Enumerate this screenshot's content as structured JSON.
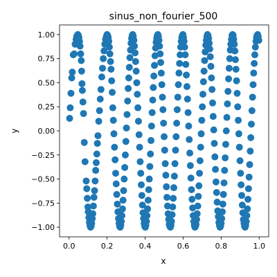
{
  "chart_data": {
    "type": "scatter",
    "title": "sinus_non_fourier_500",
    "xlabel": "x",
    "ylabel": "y",
    "xlim": [
      -0.05,
      1.05
    ],
    "ylim": [
      -1.1,
      1.1
    ],
    "xticks": [
      0.0,
      0.2,
      0.4,
      0.6,
      0.8,
      1.0
    ],
    "xtick_labels": [
      "0.0",
      "0.2",
      "0.4",
      "0.6",
      "0.8",
      "1.0"
    ],
    "yticks": [
      -1.0,
      -0.75,
      -0.5,
      -0.25,
      0.0,
      0.25,
      0.5,
      0.75,
      1.0
    ],
    "ytick_labels": [
      "−1.00",
      "−0.75",
      "−0.50",
      "−0.25",
      "0.00",
      "0.25",
      "0.50",
      "0.75",
      "1.00"
    ],
    "grid": false,
    "marker_color": "#1f77b4",
    "approximate_function": "y = sin(2*pi*7*x)",
    "points": [
      [
        0.003,
        0.13
      ],
      [
        0.006,
        0.24
      ],
      [
        0.01,
        0.39
      ],
      [
        0.014,
        0.55
      ],
      [
        0.017,
        0.61
      ],
      [
        0.022,
        0.79
      ],
      [
        0.027,
        0.8
      ],
      [
        0.032,
        0.9
      ],
      [
        0.037,
        0.95
      ],
      [
        0.04,
        0.98
      ],
      [
        0.043,
        0.99
      ],
      [
        0.046,
        1.0
      ],
      [
        0.049,
        0.99
      ],
      [
        0.052,
        0.97
      ],
      [
        0.055,
        0.93
      ],
      [
        0.058,
        0.88
      ],
      [
        0.061,
        0.8
      ],
      [
        0.064,
        0.73
      ],
      [
        0.066,
        0.62
      ],
      [
        0.068,
        0.49
      ],
      [
        0.07,
        0.42
      ],
      [
        0.073,
        0.3
      ],
      [
        0.076,
        0.18
      ],
      [
        0.08,
        -0.12
      ],
      [
        0.084,
        -0.32
      ],
      [
        0.09,
        -0.52
      ],
      [
        0.093,
        -0.6
      ],
      [
        0.096,
        -0.7
      ],
      [
        0.099,
        -0.79
      ],
      [
        0.101,
        -0.84
      ],
      [
        0.104,
        -0.9
      ],
      [
        0.107,
        -0.95
      ],
      [
        0.11,
        -0.98
      ],
      [
        0.113,
        -1.0
      ],
      [
        0.116,
        -0.99
      ],
      [
        0.119,
        -0.96
      ],
      [
        0.122,
        -0.91
      ],
      [
        0.125,
        -0.86
      ],
      [
        0.128,
        -0.78
      ],
      [
        0.131,
        -0.69
      ],
      [
        0.134,
        -0.62
      ],
      [
        0.137,
        -0.52
      ],
      [
        0.14,
        -0.41
      ],
      [
        0.143,
        -0.33
      ],
      [
        0.146,
        -0.24
      ],
      [
        0.149,
        -0.13
      ],
      [
        0.152,
        -0.05
      ],
      [
        0.156,
        0.1
      ],
      [
        0.16,
        0.21
      ],
      [
        0.164,
        0.33
      ],
      [
        0.168,
        0.43
      ],
      [
        0.172,
        0.56
      ],
      [
        0.176,
        0.65
      ],
      [
        0.18,
        0.75
      ],
      [
        0.184,
        0.83
      ],
      [
        0.188,
        0.9
      ],
      [
        0.192,
        0.95
      ],
      [
        0.196,
        0.98
      ],
      [
        0.2,
        1.0
      ],
      [
        0.203,
        0.99
      ],
      [
        0.206,
        0.97
      ],
      [
        0.209,
        0.93
      ],
      [
        0.212,
        0.87
      ],
      [
        0.215,
        0.8
      ],
      [
        0.218,
        0.72
      ],
      [
        0.221,
        0.64
      ],
      [
        0.224,
        0.52
      ],
      [
        0.227,
        0.4
      ],
      [
        0.23,
        0.24
      ],
      [
        0.233,
        0.11
      ],
      [
        0.236,
        -0.03
      ],
      [
        0.239,
        -0.17
      ],
      [
        0.242,
        -0.3
      ],
      [
        0.245,
        -0.44
      ],
      [
        0.248,
        -0.55
      ],
      [
        0.251,
        -0.66
      ],
      [
        0.254,
        -0.76
      ],
      [
        0.257,
        -0.84
      ],
      [
        0.26,
        -0.91
      ],
      [
        0.263,
        -0.96
      ],
      [
        0.266,
        -0.99
      ],
      [
        0.269,
        -1.0
      ],
      [
        0.272,
        -0.98
      ],
      [
        0.275,
        -0.94
      ],
      [
        0.278,
        -0.88
      ],
      [
        0.281,
        -0.81
      ],
      [
        0.284,
        -0.72
      ],
      [
        0.287,
        -0.62
      ],
      [
        0.29,
        -0.5
      ],
      [
        0.293,
        -0.38
      ],
      [
        0.296,
        -0.25
      ],
      [
        0.299,
        -0.11
      ],
      [
        0.302,
        0.03
      ],
      [
        0.305,
        0.17
      ],
      [
        0.308,
        0.31
      ],
      [
        0.311,
        0.44
      ],
      [
        0.314,
        0.55
      ],
      [
        0.317,
        0.66
      ],
      [
        0.32,
        0.76
      ],
      [
        0.323,
        0.84
      ],
      [
        0.326,
        0.91
      ],
      [
        0.329,
        0.96
      ],
      [
        0.332,
        0.99
      ],
      [
        0.335,
        1.0
      ],
      [
        0.338,
        0.98
      ],
      [
        0.341,
        0.94
      ],
      [
        0.344,
        0.88
      ],
      [
        0.347,
        0.81
      ],
      [
        0.35,
        0.72
      ],
      [
        0.353,
        0.62
      ],
      [
        0.356,
        0.5
      ],
      [
        0.359,
        0.38
      ],
      [
        0.362,
        0.24
      ],
      [
        0.365,
        0.1
      ],
      [
        0.368,
        -0.04
      ],
      [
        0.371,
        -0.17
      ],
      [
        0.374,
        -0.32
      ],
      [
        0.377,
        -0.44
      ],
      [
        0.38,
        -0.56
      ],
      [
        0.383,
        -0.67
      ],
      [
        0.386,
        -0.77
      ],
      [
        0.389,
        -0.85
      ],
      [
        0.392,
        -0.91
      ],
      [
        0.395,
        -0.96
      ],
      [
        0.398,
        -0.99
      ],
      [
        0.401,
        -1.0
      ],
      [
        0.404,
        -0.98
      ],
      [
        0.407,
        -0.94
      ],
      [
        0.41,
        -0.88
      ],
      [
        0.413,
        -0.81
      ],
      [
        0.416,
        -0.72
      ],
      [
        0.419,
        -0.61
      ],
      [
        0.422,
        -0.5
      ],
      [
        0.425,
        -0.37
      ],
      [
        0.428,
        -0.24
      ],
      [
        0.431,
        -0.1
      ],
      [
        0.434,
        0.05
      ],
      [
        0.437,
        0.19
      ],
      [
        0.44,
        0.32
      ],
      [
        0.443,
        0.45
      ],
      [
        0.446,
        0.57
      ],
      [
        0.449,
        0.68
      ],
      [
        0.452,
        0.78
      ],
      [
        0.455,
        0.86
      ],
      [
        0.458,
        0.92
      ],
      [
        0.461,
        0.96
      ],
      [
        0.464,
        0.99
      ],
      [
        0.467,
        1.0
      ],
      [
        0.47,
        0.98
      ],
      [
        0.473,
        0.94
      ],
      [
        0.476,
        0.88
      ],
      [
        0.479,
        0.8
      ],
      [
        0.482,
        0.71
      ],
      [
        0.485,
        0.6
      ],
      [
        0.488,
        0.48
      ],
      [
        0.491,
        0.35
      ],
      [
        0.494,
        0.22
      ],
      [
        0.497,
        0.08
      ],
      [
        0.5,
        -0.06
      ],
      [
        0.503,
        -0.2
      ],
      [
        0.506,
        -0.34
      ],
      [
        0.509,
        -0.46
      ],
      [
        0.512,
        -0.58
      ],
      [
        0.515,
        -0.69
      ],
      [
        0.518,
        -0.78
      ],
      [
        0.521,
        -0.86
      ],
      [
        0.524,
        -0.92
      ],
      [
        0.527,
        -0.97
      ],
      [
        0.53,
        -0.99
      ],
      [
        0.533,
        -1.0
      ],
      [
        0.536,
        -0.98
      ],
      [
        0.539,
        -0.94
      ],
      [
        0.542,
        -0.87
      ],
      [
        0.545,
        -0.79
      ],
      [
        0.548,
        -0.7
      ],
      [
        0.551,
        -0.59
      ],
      [
        0.554,
        -0.47
      ],
      [
        0.557,
        -0.34
      ],
      [
        0.56,
        -0.2
      ],
      [
        0.563,
        -0.06
      ],
      [
        0.566,
        0.08
      ],
      [
        0.569,
        0.22
      ],
      [
        0.572,
        0.35
      ],
      [
        0.575,
        0.48
      ],
      [
        0.578,
        0.6
      ],
      [
        0.581,
        0.7
      ],
      [
        0.584,
        0.79
      ],
      [
        0.587,
        0.87
      ],
      [
        0.59,
        0.93
      ],
      [
        0.593,
        0.97
      ],
      [
        0.596,
        0.99
      ],
      [
        0.599,
        1.0
      ],
      [
        0.602,
        0.97
      ],
      [
        0.605,
        0.93
      ],
      [
        0.608,
        0.87
      ],
      [
        0.611,
        0.79
      ],
      [
        0.614,
        0.69
      ],
      [
        0.617,
        0.58
      ],
      [
        0.62,
        0.46
      ],
      [
        0.623,
        0.33
      ],
      [
        0.626,
        0.19
      ],
      [
        0.629,
        0.05
      ],
      [
        0.632,
        -0.09
      ],
      [
        0.635,
        -0.23
      ],
      [
        0.638,
        -0.36
      ],
      [
        0.641,
        -0.49
      ],
      [
        0.644,
        -0.61
      ],
      [
        0.647,
        -0.71
      ],
      [
        0.65,
        -0.8
      ],
      [
        0.653,
        -0.88
      ],
      [
        0.656,
        -0.94
      ],
      [
        0.659,
        -0.98
      ],
      [
        0.662,
        -1.0
      ],
      [
        0.665,
        -0.99
      ],
      [
        0.668,
        -0.97
      ],
      [
        0.671,
        -0.92
      ],
      [
        0.674,
        -0.86
      ],
      [
        0.677,
        -0.78
      ],
      [
        0.68,
        -0.68
      ],
      [
        0.683,
        -0.57
      ],
      [
        0.686,
        -0.44
      ],
      [
        0.689,
        -0.31
      ],
      [
        0.692,
        -0.17
      ],
      [
        0.695,
        -0.03
      ],
      [
        0.698,
        0.11
      ],
      [
        0.701,
        0.25
      ],
      [
        0.704,
        0.38
      ],
      [
        0.707,
        0.51
      ],
      [
        0.71,
        0.62
      ],
      [
        0.713,
        0.73
      ],
      [
        0.716,
        0.82
      ],
      [
        0.719,
        0.89
      ],
      [
        0.722,
        0.94
      ],
      [
        0.725,
        0.98
      ],
      [
        0.728,
        1.0
      ],
      [
        0.731,
        0.99
      ],
      [
        0.734,
        0.96
      ],
      [
        0.737,
        0.91
      ],
      [
        0.74,
        0.85
      ],
      [
        0.743,
        0.77
      ],
      [
        0.746,
        0.67
      ],
      [
        0.749,
        0.55
      ],
      [
        0.752,
        0.43
      ],
      [
        0.755,
        0.29
      ],
      [
        0.758,
        0.15
      ],
      [
        0.761,
        0.01
      ],
      [
        0.764,
        -0.13
      ],
      [
        0.767,
        -0.27
      ],
      [
        0.77,
        -0.4
      ],
      [
        0.773,
        -0.53
      ],
      [
        0.776,
        -0.64
      ],
      [
        0.779,
        -0.74
      ],
      [
        0.782,
        -0.83
      ],
      [
        0.785,
        -0.89
      ],
      [
        0.788,
        -0.95
      ],
      [
        0.791,
        -0.98
      ],
      [
        0.794,
        -1.0
      ],
      [
        0.797,
        -0.99
      ],
      [
        0.8,
        -0.96
      ],
      [
        0.803,
        -0.91
      ],
      [
        0.806,
        -0.84
      ],
      [
        0.809,
        -0.76
      ],
      [
        0.812,
        -0.66
      ],
      [
        0.815,
        -0.54
      ],
      [
        0.818,
        -0.41
      ],
      [
        0.821,
        -0.28
      ],
      [
        0.824,
        -0.14
      ],
      [
        0.827,
        0.0
      ],
      [
        0.83,
        0.14
      ],
      [
        0.833,
        0.28
      ],
      [
        0.836,
        0.41
      ],
      [
        0.839,
        0.54
      ],
      [
        0.842,
        0.65
      ],
      [
        0.845,
        0.75
      ],
      [
        0.848,
        0.84
      ],
      [
        0.851,
        0.9
      ],
      [
        0.854,
        0.95
      ],
      [
        0.857,
        0.99
      ],
      [
        0.86,
        1.0
      ],
      [
        0.863,
        0.99
      ],
      [
        0.866,
        0.95
      ],
      [
        0.869,
        0.9
      ],
      [
        0.872,
        0.83
      ],
      [
        0.875,
        0.74
      ],
      [
        0.878,
        0.64
      ],
      [
        0.881,
        0.52
      ],
      [
        0.884,
        0.39
      ],
      [
        0.887,
        0.25
      ],
      [
        0.89,
        0.11
      ],
      [
        0.893,
        -0.03
      ],
      [
        0.896,
        -0.17
      ],
      [
        0.899,
        -0.31
      ],
      [
        0.902,
        -0.44
      ],
      [
        0.905,
        -0.56
      ],
      [
        0.908,
        -0.67
      ],
      [
        0.911,
        -0.77
      ],
      [
        0.914,
        -0.85
      ],
      [
        0.917,
        -0.92
      ],
      [
        0.92,
        -0.96
      ],
      [
        0.923,
        -0.99
      ],
      [
        0.926,
        -1.0
      ],
      [
        0.929,
        -0.98
      ],
      [
        0.932,
        -0.94
      ],
      [
        0.935,
        -0.88
      ],
      [
        0.938,
        -0.81
      ],
      [
        0.941,
        -0.71
      ],
      [
        0.944,
        -0.6
      ],
      [
        0.947,
        -0.48
      ],
      [
        0.95,
        -0.35
      ],
      [
        0.953,
        -0.21
      ],
      [
        0.956,
        -0.07
      ],
      [
        0.959,
        0.07
      ],
      [
        0.962,
        0.21
      ],
      [
        0.965,
        0.35
      ],
      [
        0.968,
        0.48
      ],
      [
        0.971,
        0.6
      ],
      [
        0.974,
        0.7
      ],
      [
        0.977,
        0.79
      ],
      [
        0.98,
        0.87
      ],
      [
        0.983,
        0.93
      ],
      [
        0.986,
        0.97
      ],
      [
        0.989,
        0.99
      ],
      [
        0.992,
        1.0
      ],
      [
        0.995,
        0.98
      ],
      [
        0.998,
        0.94
      ]
    ]
  }
}
